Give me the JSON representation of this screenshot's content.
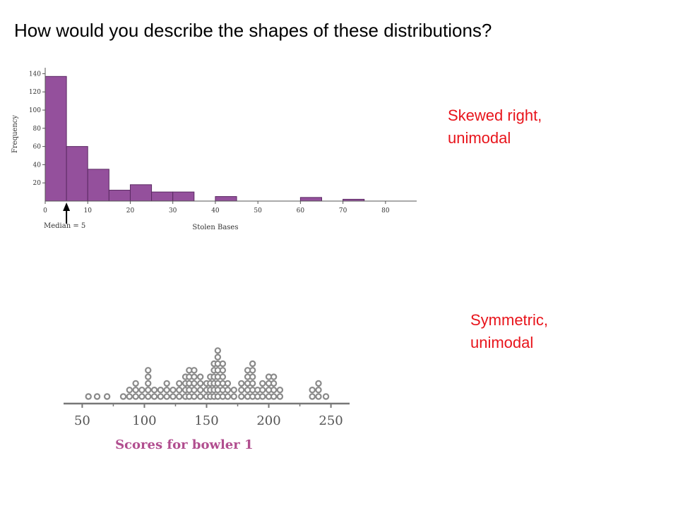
{
  "slide": {
    "title": "How would you describe the shapes of these distributions?",
    "answers": [
      {
        "lines": [
          "Skewed right,",
          "unimodal"
        ]
      },
      {
        "lines": [
          "Symmetric,",
          "unimodal"
        ]
      }
    ],
    "answer_color": "#e8141b"
  },
  "chart_data": [
    {
      "type": "bar",
      "subtype": "histogram",
      "xlabel": "Stolen Bases",
      "ylabel": "Frequency",
      "bin_width": 5,
      "bins": [
        {
          "start": 0,
          "end": 5,
          "value": 137
        },
        {
          "start": 5,
          "end": 10,
          "value": 60
        },
        {
          "start": 10,
          "end": 15,
          "value": 35
        },
        {
          "start": 15,
          "end": 20,
          "value": 12
        },
        {
          "start": 20,
          "end": 25,
          "value": 18
        },
        {
          "start": 25,
          "end": 30,
          "value": 10
        },
        {
          "start": 30,
          "end": 35,
          "value": 10
        },
        {
          "start": 40,
          "end": 45,
          "value": 5
        },
        {
          "start": 60,
          "end": 65,
          "value": 4
        },
        {
          "start": 70,
          "end": 75,
          "value": 2
        }
      ],
      "x_ticks": [
        0,
        10,
        20,
        30,
        40,
        50,
        60,
        70,
        80
      ],
      "y_ticks": [
        20,
        40,
        60,
        80,
        100,
        120,
        140
      ],
      "xlim": [
        0,
        87
      ],
      "ylim": [
        0,
        145
      ],
      "annotation": {
        "label": "Median = 5",
        "x": 5
      },
      "bar_color": "#94509c",
      "edge_color": "#5b2a63"
    },
    {
      "type": "scatter",
      "subtype": "dotplot",
      "xlabel": "Scores for bowler 1",
      "x_ticks": [
        50,
        100,
        150,
        200,
        250
      ],
      "xlim": [
        35,
        265
      ],
      "points": [
        {
          "x": 55,
          "count": 1
        },
        {
          "x": 62,
          "count": 1
        },
        {
          "x": 70,
          "count": 1
        },
        {
          "x": 83,
          "count": 1
        },
        {
          "x": 88,
          "count": 2
        },
        {
          "x": 93,
          "count": 3
        },
        {
          "x": 98,
          "count": 2
        },
        {
          "x": 103,
          "count": 5
        },
        {
          "x": 108,
          "count": 2
        },
        {
          "x": 113,
          "count": 2
        },
        {
          "x": 118,
          "count": 3
        },
        {
          "x": 123,
          "count": 2
        },
        {
          "x": 128,
          "count": 3
        },
        {
          "x": 133,
          "count": 4
        },
        {
          "x": 136,
          "count": 5
        },
        {
          "x": 140,
          "count": 5
        },
        {
          "x": 145,
          "count": 4
        },
        {
          "x": 150,
          "count": 3
        },
        {
          "x": 153,
          "count": 4
        },
        {
          "x": 156,
          "count": 6
        },
        {
          "x": 159,
          "count": 8
        },
        {
          "x": 163,
          "count": 6
        },
        {
          "x": 167,
          "count": 3
        },
        {
          "x": 172,
          "count": 2
        },
        {
          "x": 178,
          "count": 3
        },
        {
          "x": 183,
          "count": 5
        },
        {
          "x": 187,
          "count": 6
        },
        {
          "x": 191,
          "count": 2
        },
        {
          "x": 195,
          "count": 3
        },
        {
          "x": 200,
          "count": 4
        },
        {
          "x": 204,
          "count": 4
        },
        {
          "x": 209,
          "count": 2
        },
        {
          "x": 235,
          "count": 2
        },
        {
          "x": 240,
          "count": 3
        },
        {
          "x": 246,
          "count": 1
        }
      ],
      "dot_color": "#8a8a8a",
      "label_color": "#b14e8f"
    }
  ]
}
